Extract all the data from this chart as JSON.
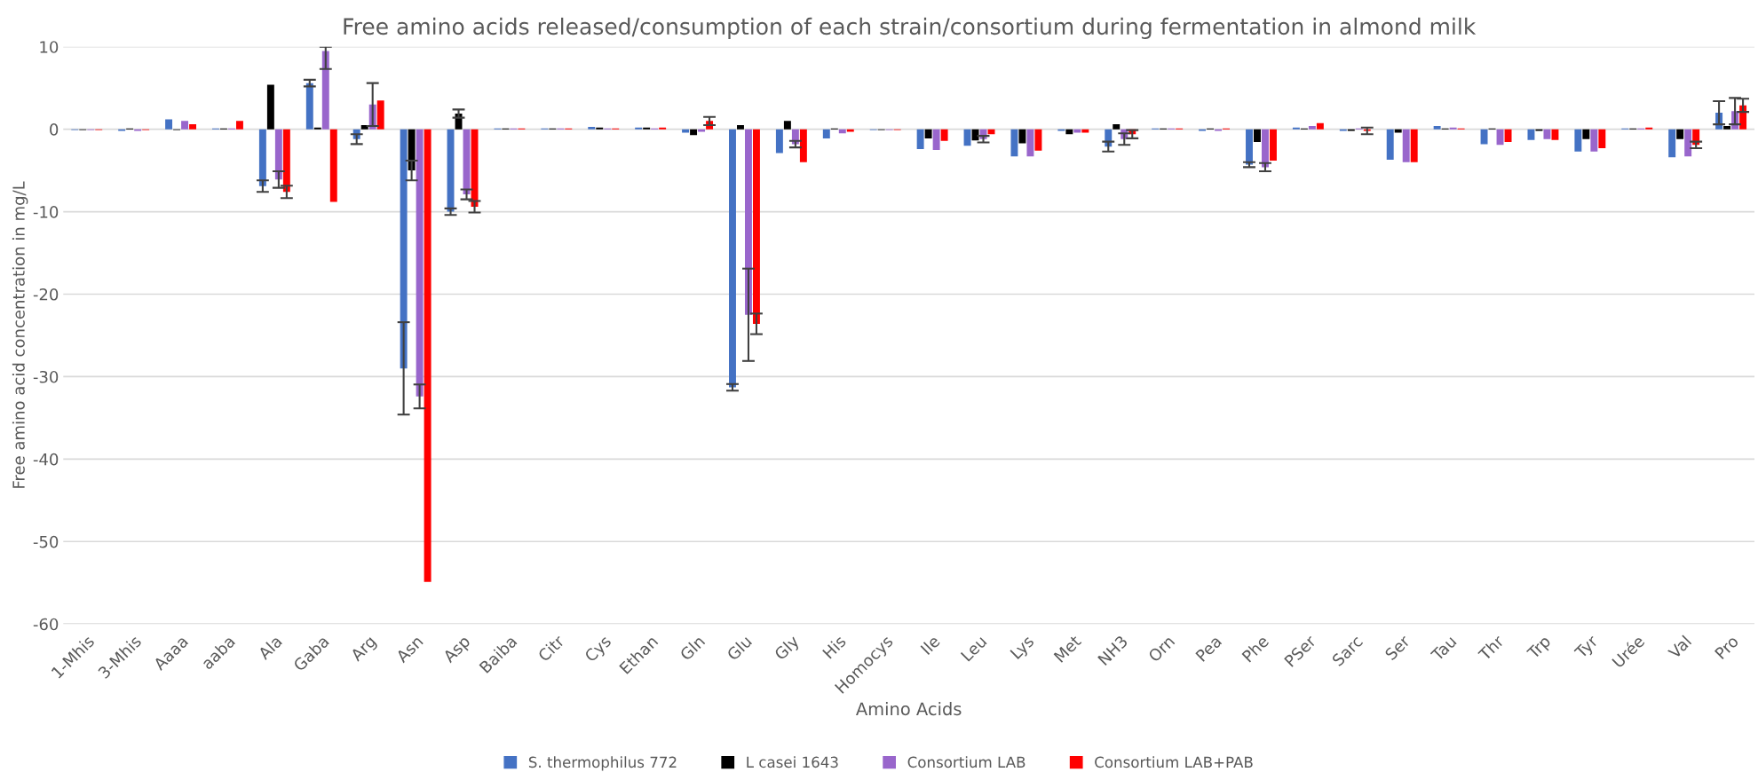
{
  "chart_data": {
    "type": "bar",
    "title": "Free amino acids released/consumption of each strain/consortium during fermentation in almond milk",
    "xlabel": "Amino Acids",
    "ylabel": "Free amino acid concentration in mg/L",
    "categories": [
      "1-Mhis",
      "3-Mhis",
      "Aaaa",
      "aaba",
      "Ala",
      "Gaba",
      "Arg",
      "Asn",
      "Asp",
      "Baiba",
      "Citr",
      "Cys",
      "Ethan",
      "Gln",
      "Glu",
      "Gly",
      "His",
      "Homocys",
      "Ile",
      "Leu",
      "Lys",
      "Met",
      "NH3",
      "Orn",
      "Pea",
      "Phe",
      "PSer",
      "Sarc",
      "Ser",
      "Tau",
      "Thr",
      "Trp",
      "Tyr",
      "Urée",
      "Val",
      "Pro"
    ],
    "series": [
      {
        "name": "S. thermophilus 772",
        "color": "#4472c4",
        "values": [
          -0.1,
          -0.2,
          1.2,
          0.1,
          -6.9,
          5.6,
          -1.2,
          -29.0,
          -10.0,
          0.1,
          0.1,
          0.3,
          0.2,
          -0.4,
          -31.3,
          -2.9,
          -1.1,
          -0.1,
          -2.4,
          -2.0,
          -3.3,
          -0.2,
          -2.1,
          0.1,
          -0.2,
          -4.3,
          0.2,
          -0.2,
          -3.7,
          0.4,
          -1.8,
          -1.3,
          -2.7,
          0.1,
          -3.4,
          2.0
        ],
        "errors": [
          null,
          null,
          null,
          null,
          0.7,
          0.4,
          0.6,
          5.6,
          0.4,
          null,
          null,
          null,
          null,
          null,
          0.4,
          null,
          null,
          null,
          null,
          null,
          null,
          null,
          0.6,
          null,
          null,
          0.3,
          null,
          null,
          null,
          null,
          null,
          null,
          null,
          null,
          null,
          1.4
        ]
      },
      {
        "name": "L casei 1643",
        "color": "#000000",
        "values": [
          -0.1,
          0.1,
          -0.1,
          0.1,
          5.4,
          0.2,
          0.5,
          -5.0,
          1.9,
          0.1,
          0.1,
          0.2,
          0.2,
          -0.7,
          0.5,
          1.0,
          0.1,
          -0.1,
          -1.1,
          -1.35,
          -1.7,
          -0.6,
          0.6,
          0.1,
          0.1,
          -1.55,
          0.1,
          -0.2,
          -0.4,
          0.1,
          0.1,
          -0.2,
          -1.2,
          0.1,
          -1.2,
          0.4
        ],
        "errors": [
          null,
          null,
          null,
          null,
          null,
          null,
          null,
          1.2,
          0.5,
          null,
          null,
          null,
          null,
          null,
          null,
          null,
          null,
          null,
          null,
          null,
          null,
          null,
          null,
          null,
          null,
          null,
          null,
          null,
          null,
          null,
          null,
          null,
          null,
          null,
          null,
          null
        ]
      },
      {
        "name": "Consortium LAB",
        "color": "#9966cc",
        "values": [
          -0.1,
          -0.2,
          1.0,
          0.1,
          -6.1,
          9.5,
          3.0,
          -32.4,
          -7.9,
          0.1,
          0.1,
          0.1,
          0.1,
          -0.3,
          -22.5,
          -1.8,
          -0.5,
          -0.1,
          -2.5,
          -1.2,
          -3.3,
          -0.4,
          -1.2,
          0.1,
          -0.2,
          -4.6,
          0.4,
          0.1,
          -4.0,
          0.2,
          -1.9,
          -1.2,
          -2.7,
          0.1,
          -3.3,
          2.2
        ],
        "errors": [
          null,
          null,
          null,
          null,
          1.0,
          [
            7.3,
            10
          ],
          2.6,
          1.45,
          0.6,
          null,
          null,
          null,
          null,
          null,
          5.6,
          0.4,
          null,
          null,
          null,
          0.4,
          null,
          null,
          0.7,
          null,
          null,
          0.5,
          null,
          null,
          null,
          null,
          null,
          null,
          null,
          null,
          null,
          1.6
        ]
      },
      {
        "name": "Consortium LAB+PAB",
        "color": "#ff0000",
        "values": [
          -0.1,
          -0.1,
          0.6,
          1.0,
          -7.6,
          -8.8,
          3.5,
          -54.9,
          -9.4,
          0.1,
          0.1,
          0.1,
          0.2,
          1.0,
          -23.6,
          -4.0,
          -0.3,
          -0.1,
          -1.4,
          -0.6,
          -2.6,
          -0.4,
          -0.6,
          0.1,
          0.1,
          -3.8,
          0.75,
          -0.2,
          -4.0,
          0.1,
          -1.55,
          -1.3,
          -2.3,
          0.2,
          -1.9,
          2.9
        ],
        "errors": [
          null,
          null,
          null,
          null,
          0.75,
          null,
          null,
          null,
          0.7,
          null,
          null,
          null,
          null,
          0.5,
          1.25,
          null,
          null,
          null,
          null,
          null,
          null,
          null,
          0.5,
          null,
          null,
          null,
          null,
          0.4,
          null,
          null,
          null,
          null,
          null,
          null,
          0.4,
          0.8
        ]
      }
    ],
    "ylim": [
      -60,
      10
    ],
    "yticks": [
      -60,
      -50,
      -40,
      -30,
      -20,
      -10,
      0,
      10
    ],
    "grid": "y",
    "legend": "bottom"
  }
}
